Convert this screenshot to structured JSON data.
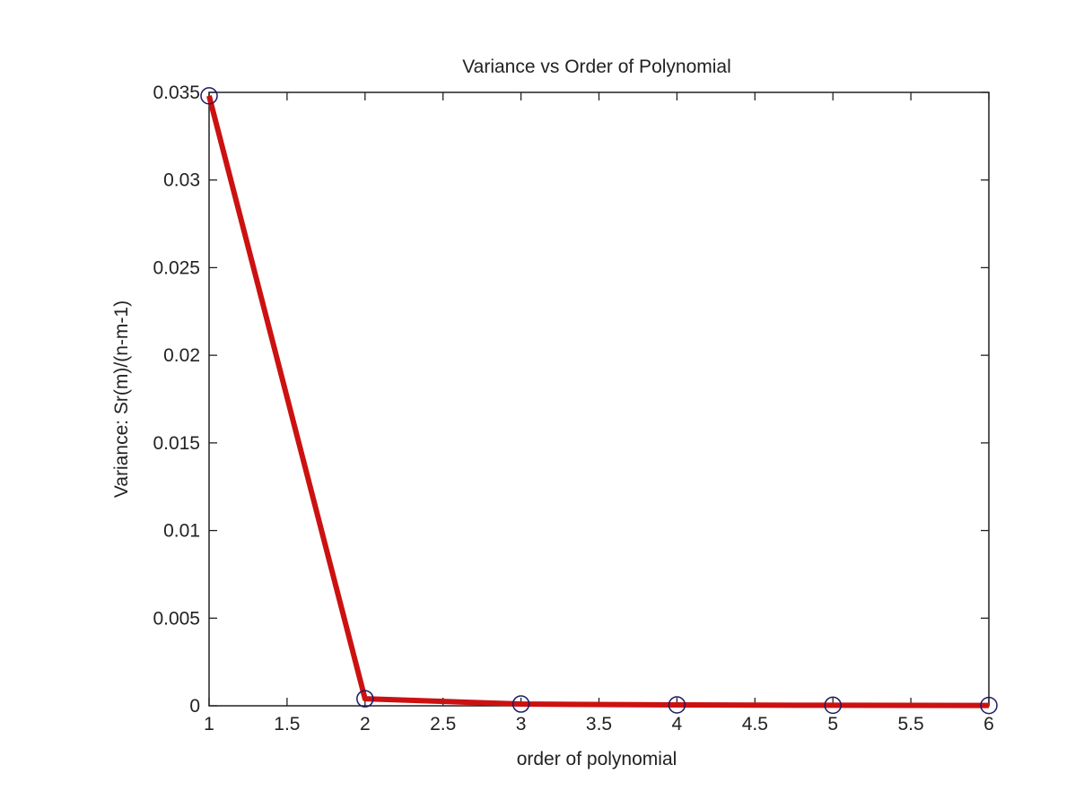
{
  "chart_data": {
    "type": "line",
    "title": "Variance vs Order of Polynomial",
    "xlabel": "order of polynomial",
    "ylabel": "Variance: Sr(m)/(n-m-1)",
    "xlim": [
      1,
      6
    ],
    "ylim": [
      0,
      0.035
    ],
    "xticks": [
      "1",
      "1.5",
      "2",
      "2.5",
      "3",
      "3.5",
      "4",
      "4.5",
      "5",
      "5.5",
      "6"
    ],
    "yticks": [
      "0",
      "0.005",
      "0.01",
      "0.015",
      "0.02",
      "0.025",
      "0.03",
      "0.035"
    ],
    "grid": false,
    "series": [
      {
        "name": "variance",
        "x": [
          1,
          2,
          3,
          4,
          5,
          6
        ],
        "y": [
          0.0348,
          0.0004,
          0.0001,
          5e-05,
          3e-05,
          2e-05
        ],
        "line_color": "#cc1111",
        "marker": "circle",
        "marker_color": "#1a1a66"
      }
    ]
  }
}
